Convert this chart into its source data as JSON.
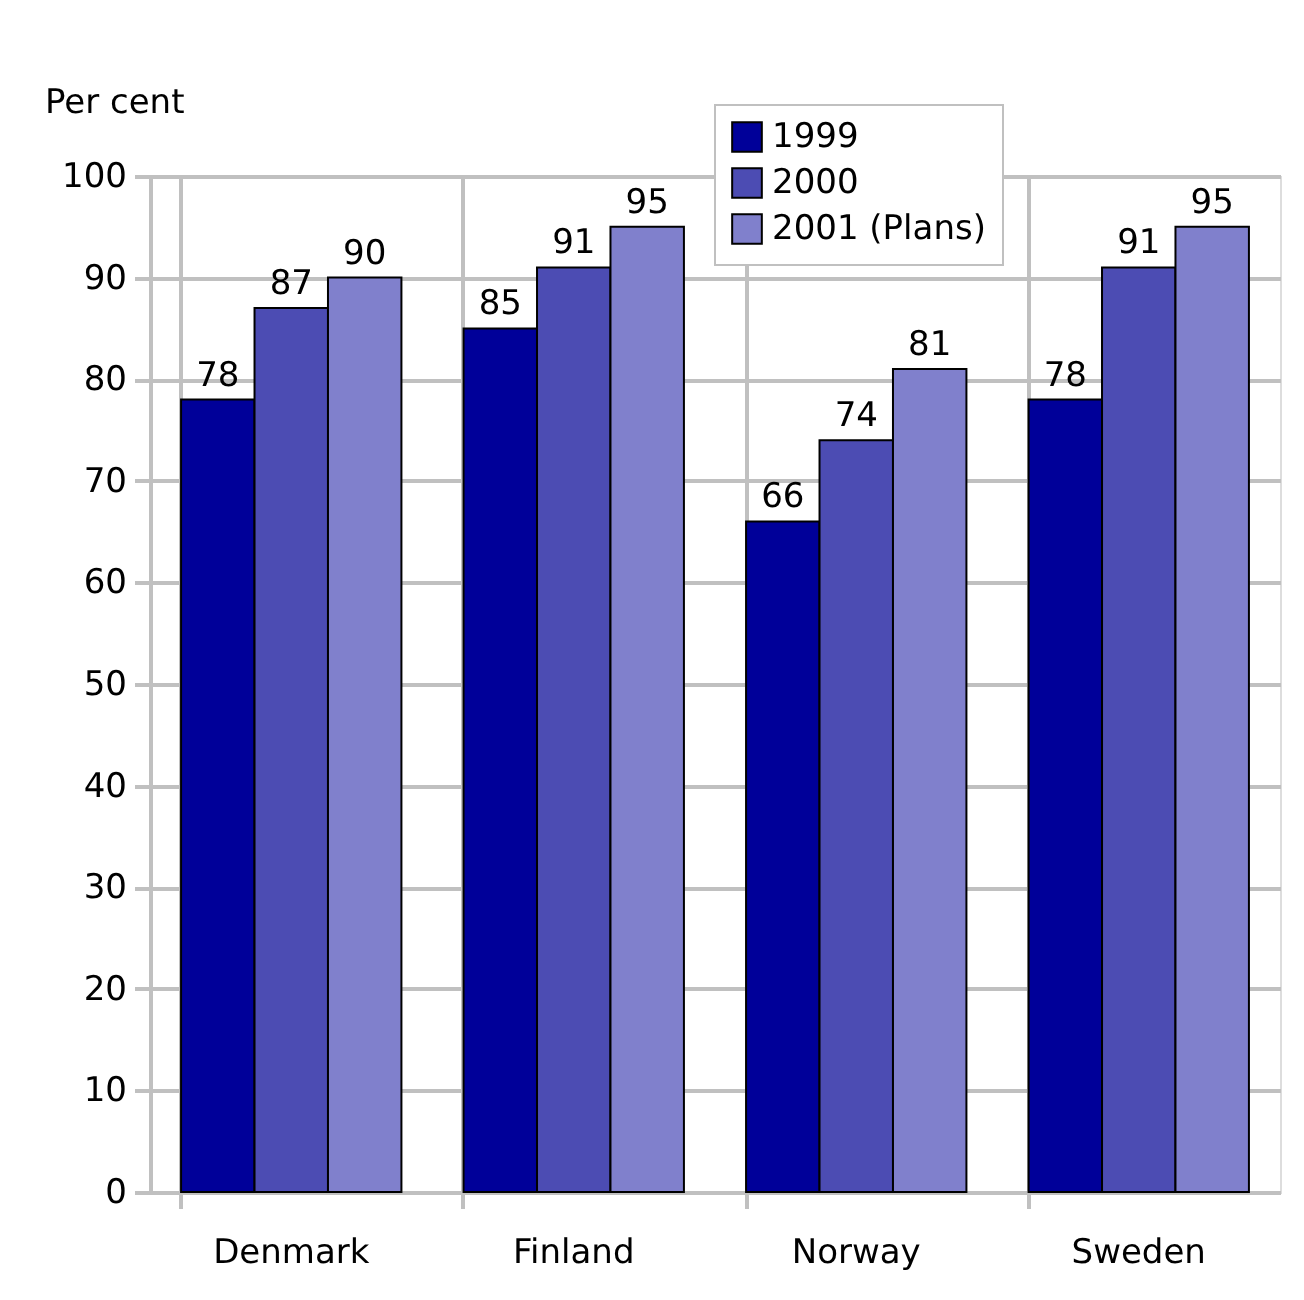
{
  "chart_data": {
    "type": "bar",
    "ylabel": "Per cent",
    "categories": [
      "Denmark",
      "Finland",
      "Norway",
      "Sweden"
    ],
    "series": [
      {
        "name": "1999",
        "color": "#000099",
        "values": [
          78,
          85,
          66,
          78
        ]
      },
      {
        "name": "2000",
        "color": "#4c4cb3",
        "values": [
          87,
          91,
          74,
          91
        ]
      },
      {
        "name": "2001 (Plans)",
        "color": "#8080cc",
        "values": [
          90,
          95,
          81,
          95
        ]
      }
    ],
    "ylim": [
      0,
      100
    ],
    "yticks": [
      0,
      10,
      20,
      30,
      40,
      50,
      60,
      70,
      80,
      90,
      100
    ],
    "grid": true,
    "legend": "top",
    "data_labels": true
  }
}
